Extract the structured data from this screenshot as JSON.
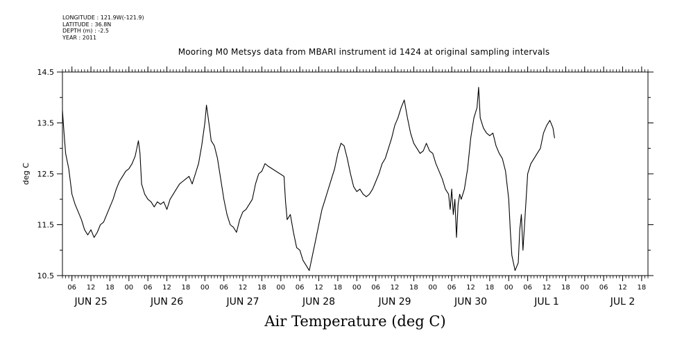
{
  "header": {
    "longitude": "LONGITUDE : 121.9W(-121.9)",
    "latitude": "LATITUDE : 36.8N",
    "depth": "DEPTH (m) : -2.5",
    "year": "YEAR : 2011"
  },
  "chart_data": {
    "type": "line",
    "title": "Mooring M0 Metsys data from MBARI instrument id 1424 at original sampling intervals",
    "xlabel": "Air Temperature (deg C)",
    "ylabel": "deg C",
    "ylim": [
      10.5,
      14.5
    ],
    "yticks": [
      "10.5",
      "11.5",
      "12.5",
      "13.5",
      "14.5"
    ],
    "xlim_hours": [
      3,
      188
    ],
    "hour_ticks": [
      {
        "h": 6,
        "label": "06"
      },
      {
        "h": 12,
        "label": "12"
      },
      {
        "h": 18,
        "label": "18"
      },
      {
        "h": 24,
        "label": "00"
      },
      {
        "h": 30,
        "label": "06"
      },
      {
        "h": 36,
        "label": "12"
      },
      {
        "h": 42,
        "label": "18"
      },
      {
        "h": 48,
        "label": "00"
      },
      {
        "h": 54,
        "label": "06"
      },
      {
        "h": 60,
        "label": "12"
      },
      {
        "h": 66,
        "label": "18"
      },
      {
        "h": 72,
        "label": "00"
      },
      {
        "h": 78,
        "label": "06"
      },
      {
        "h": 84,
        "label": "12"
      },
      {
        "h": 90,
        "label": "18"
      },
      {
        "h": 96,
        "label": "00"
      },
      {
        "h": 102,
        "label": "06"
      },
      {
        "h": 108,
        "label": "12"
      },
      {
        "h": 114,
        "label": "18"
      },
      {
        "h": 120,
        "label": "00"
      },
      {
        "h": 126,
        "label": "06"
      },
      {
        "h": 132,
        "label": "12"
      },
      {
        "h": 138,
        "label": "18"
      },
      {
        "h": 144,
        "label": "00"
      },
      {
        "h": 150,
        "label": "06"
      },
      {
        "h": 156,
        "label": "12"
      },
      {
        "h": 162,
        "label": "18"
      },
      {
        "h": 168,
        "label": "00"
      },
      {
        "h": 174,
        "label": "06"
      },
      {
        "h": 180,
        "label": "12"
      },
      {
        "h": 186,
        "label": "18"
      }
    ],
    "day_labels": [
      {
        "h": 12,
        "label": "JUN 25"
      },
      {
        "h": 36,
        "label": "JUN 26"
      },
      {
        "h": 60,
        "label": "JUN 27"
      },
      {
        "h": 84,
        "label": "JUN 28"
      },
      {
        "h": 108,
        "label": "JUN 29"
      },
      {
        "h": 132,
        "label": "JUN 30"
      },
      {
        "h": 156,
        "label": "JUL 1"
      },
      {
        "h": 180,
        "label": "JUL 2"
      }
    ],
    "series": [
      {
        "points": [
          [
            3,
            13.75
          ],
          [
            3.5,
            13.3
          ],
          [
            4,
            12.9
          ],
          [
            5,
            12.6
          ],
          [
            6,
            12.1
          ],
          [
            7,
            11.9
          ],
          [
            8,
            11.75
          ],
          [
            9,
            11.6
          ],
          [
            10,
            11.4
          ],
          [
            11,
            11.3
          ],
          [
            12,
            11.4
          ],
          [
            13,
            11.25
          ],
          [
            14,
            11.35
          ],
          [
            15,
            11.5
          ],
          [
            16,
            11.55
          ],
          [
            17,
            11.7
          ],
          [
            18,
            11.85
          ],
          [
            19,
            12.0
          ],
          [
            20,
            12.2
          ],
          [
            21,
            12.35
          ],
          [
            22,
            12.45
          ],
          [
            23,
            12.55
          ],
          [
            24,
            12.6
          ],
          [
            25,
            12.7
          ],
          [
            26,
            12.85
          ],
          [
            27,
            13.15
          ],
          [
            27.5,
            12.9
          ],
          [
            28,
            12.3
          ],
          [
            29,
            12.1
          ],
          [
            30,
            12.0
          ],
          [
            31,
            11.95
          ],
          [
            32,
            11.85
          ],
          [
            33,
            11.95
          ],
          [
            34,
            11.9
          ],
          [
            35,
            11.95
          ],
          [
            36,
            11.8
          ],
          [
            37,
            12.0
          ],
          [
            38,
            12.1
          ],
          [
            39,
            12.2
          ],
          [
            40,
            12.3
          ],
          [
            41,
            12.35
          ],
          [
            42,
            12.4
          ],
          [
            43,
            12.45
          ],
          [
            44,
            12.3
          ],
          [
            45,
            12.5
          ],
          [
            46,
            12.7
          ],
          [
            47,
            13.05
          ],
          [
            48,
            13.5
          ],
          [
            48.5,
            13.85
          ],
          [
            49.5,
            13.4
          ],
          [
            50,
            13.15
          ],
          [
            51,
            13.05
          ],
          [
            52,
            12.8
          ],
          [
            53,
            12.4
          ],
          [
            54,
            12.0
          ],
          [
            55,
            11.7
          ],
          [
            56,
            11.5
          ],
          [
            57,
            11.45
          ],
          [
            58,
            11.35
          ],
          [
            59,
            11.6
          ],
          [
            60,
            11.75
          ],
          [
            61,
            11.8
          ],
          [
            62,
            11.9
          ],
          [
            63,
            12.0
          ],
          [
            64,
            12.3
          ],
          [
            65,
            12.5
          ],
          [
            66,
            12.55
          ],
          [
            67,
            12.7
          ],
          [
            68,
            12.65
          ],
          [
            73,
            12.45
          ],
          [
            73.5,
            11.95
          ],
          [
            74,
            11.6
          ],
          [
            75,
            11.7
          ],
          [
            76,
            11.35
          ],
          [
            77,
            11.05
          ],
          [
            78,
            11.0
          ],
          [
            79,
            10.8
          ],
          [
            80,
            10.7
          ],
          [
            81,
            10.6
          ],
          [
            82,
            10.9
          ],
          [
            83,
            11.2
          ],
          [
            84,
            11.5
          ],
          [
            85,
            11.8
          ],
          [
            86,
            12.0
          ],
          [
            87,
            12.2
          ],
          [
            88,
            12.4
          ],
          [
            89,
            12.6
          ],
          [
            90,
            12.9
          ],
          [
            91,
            13.1
          ],
          [
            92,
            13.05
          ],
          [
            93,
            12.8
          ],
          [
            94,
            12.5
          ],
          [
            95,
            12.25
          ],
          [
            96,
            12.15
          ],
          [
            97,
            12.2
          ],
          [
            98,
            12.1
          ],
          [
            99,
            12.05
          ],
          [
            100,
            12.1
          ],
          [
            101,
            12.2
          ],
          [
            102,
            12.35
          ],
          [
            103,
            12.5
          ],
          [
            104,
            12.7
          ],
          [
            105,
            12.8
          ],
          [
            106,
            13.0
          ],
          [
            107,
            13.2
          ],
          [
            108,
            13.45
          ],
          [
            109,
            13.6
          ],
          [
            110,
            13.8
          ],
          [
            111,
            13.95
          ],
          [
            112,
            13.6
          ],
          [
            113,
            13.3
          ],
          [
            114,
            13.1
          ],
          [
            115,
            13.0
          ],
          [
            116,
            12.9
          ],
          [
            117,
            12.95
          ],
          [
            118,
            13.1
          ],
          [
            119,
            12.95
          ],
          [
            120,
            12.9
          ],
          [
            121,
            12.7
          ],
          [
            122,
            12.55
          ],
          [
            123,
            12.4
          ],
          [
            124,
            12.2
          ],
          [
            125,
            12.1
          ],
          [
            125.5,
            11.8
          ],
          [
            126,
            12.2
          ],
          [
            126.5,
            11.7
          ],
          [
            127,
            12.0
          ],
          [
            127.5,
            11.25
          ],
          [
            128,
            11.9
          ],
          [
            128.5,
            12.1
          ],
          [
            129,
            12.0
          ],
          [
            130,
            12.2
          ],
          [
            131,
            12.6
          ],
          [
            132,
            13.2
          ],
          [
            133,
            13.6
          ],
          [
            134,
            13.8
          ],
          [
            134.5,
            14.2
          ],
          [
            135,
            13.6
          ],
          [
            136,
            13.4
          ],
          [
            137,
            13.3
          ],
          [
            138,
            13.25
          ],
          [
            139,
            13.3
          ],
          [
            140,
            13.05
          ],
          [
            141,
            12.9
          ],
          [
            142,
            12.8
          ],
          [
            143,
            12.55
          ],
          [
            144,
            12.0
          ],
          [
            144.5,
            11.4
          ],
          [
            145,
            10.9
          ],
          [
            146,
            10.6
          ],
          [
            147,
            10.75
          ],
          [
            147.5,
            11.4
          ],
          [
            148,
            11.7
          ],
          [
            148.5,
            11.0
          ],
          [
            149,
            11.5
          ],
          [
            150,
            12.5
          ],
          [
            151,
            12.7
          ],
          [
            152,
            12.8
          ],
          [
            153,
            12.9
          ],
          [
            154,
            13.0
          ],
          [
            155,
            13.3
          ],
          [
            156,
            13.45
          ],
          [
            157,
            13.55
          ],
          [
            158,
            13.4
          ],
          [
            158.5,
            13.2
          ]
        ]
      }
    ]
  }
}
